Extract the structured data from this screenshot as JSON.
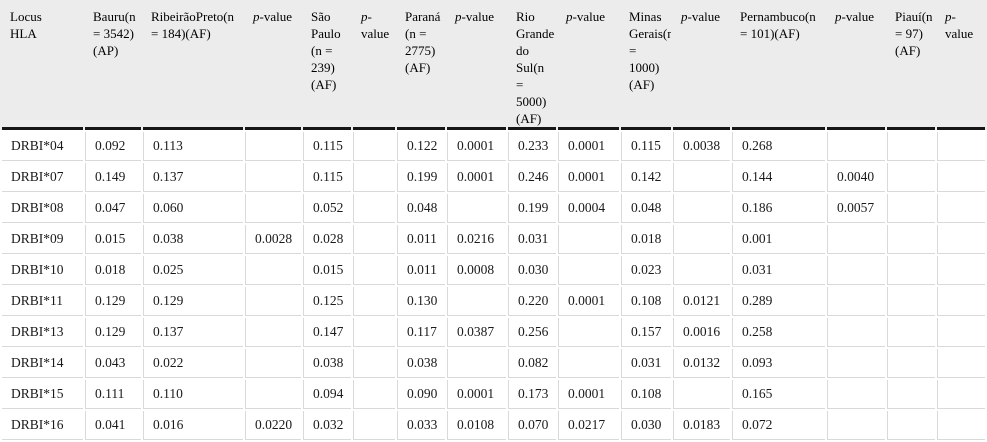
{
  "colors": {
    "header_background": "#ececec",
    "grid_line": "#d9d9d9",
    "header_rule": "#161616",
    "text": "#1a1a1a"
  },
  "table": {
    "columns": [
      {
        "id": "locus",
        "label": "Locus HLA",
        "type": "locus"
      },
      {
        "id": "bauru",
        "label": "Bauru(n = 3542) (AP)",
        "type": "population"
      },
      {
        "id": "ribeirao-preto",
        "label": "RibeirãoPreto(n = 184)(AF)",
        "type": "population"
      },
      {
        "id": "p-ribeirao-preto",
        "label": "p-value",
        "type": "pvalue"
      },
      {
        "id": "sao-paulo",
        "label": "São Paulo (n = 239) (AF)",
        "type": "population"
      },
      {
        "id": "p-sao-paulo",
        "label": "p-value",
        "type": "pvalue"
      },
      {
        "id": "parana",
        "label": "Paraná (n = 2775) (AF)",
        "type": "population"
      },
      {
        "id": "p-parana",
        "label": "p-value",
        "type": "pvalue"
      },
      {
        "id": "rio-grande-do-sul",
        "label": "Rio Grande do Sul(n = 5000) (AF)",
        "type": "population"
      },
      {
        "id": "p-rio-grande-do-sul",
        "label": "p-value",
        "type": "pvalue"
      },
      {
        "id": "minas-gerais",
        "label": "Minas Gerais(n = 1000) (AF)",
        "type": "population"
      },
      {
        "id": "p-minas-gerais",
        "label": "p-value",
        "type": "pvalue"
      },
      {
        "id": "pernambuco",
        "label": "Pernambuco(n = 101)(AF)",
        "type": "population"
      },
      {
        "id": "p-pernambuco",
        "label": "p-value",
        "type": "pvalue"
      },
      {
        "id": "piaui",
        "label": "Piauí(n = 97) (AF)",
        "type": "population"
      },
      {
        "id": "p-piaui",
        "label": "p-value",
        "type": "pvalue"
      }
    ],
    "rows": [
      [
        "DRBI*04",
        "0.092",
        "0.113",
        "",
        "0.115",
        "",
        "0.122",
        "0.0001",
        "0.233",
        "0.0001",
        "0.115",
        "0.0038",
        "0.268",
        "",
        "",
        ""
      ],
      [
        "DRBI*07",
        "0.149",
        "0.137",
        "",
        "0.115",
        "",
        "0.199",
        "0.0001",
        "0.246",
        "0.0001",
        "0.142",
        "",
        "0.144",
        "0.0040",
        "",
        ""
      ],
      [
        "DRBI*08",
        "0.047",
        "0.060",
        "",
        "0.052",
        "",
        "0.048",
        "",
        "0.199",
        "0.0004",
        "0.048",
        "",
        "0.186",
        "0.0057",
        "",
        ""
      ],
      [
        "DRBI*09",
        "0.015",
        "0.038",
        "0.0028",
        "0.028",
        "",
        "0.011",
        "0.0216",
        "0.031",
        "",
        "0.018",
        "",
        "0.001",
        "",
        "",
        ""
      ],
      [
        "DRBI*10",
        "0.018",
        "0.025",
        "",
        "0.015",
        "",
        "0.011",
        "0.0008",
        "0.030",
        "",
        "0.023",
        "",
        "0.031",
        "",
        "",
        ""
      ],
      [
        "DRBI*11",
        "0.129",
        "0.129",
        "",
        "0.125",
        "",
        "0.130",
        "",
        "0.220",
        "0.0001",
        "0.108",
        "0.0121",
        "0.289",
        "",
        "",
        ""
      ],
      [
        "DRBI*13",
        "0.129",
        "0.137",
        "",
        "0.147",
        "",
        "0.117",
        "0.0387",
        "0.256",
        "",
        "0.157",
        "0.0016",
        "0.258",
        "",
        "",
        ""
      ],
      [
        "DRBI*14",
        "0.043",
        "0.022",
        "",
        "0.038",
        "",
        "0.038",
        "",
        "0.082",
        "",
        "0.031",
        "0.0132",
        "0.093",
        "",
        "",
        ""
      ],
      [
        "DRBI*15",
        "0.111",
        "0.110",
        "",
        "0.094",
        "",
        "0.090",
        "0.0001",
        "0.173",
        "0.0001",
        "0.108",
        "",
        "0.165",
        "",
        "",
        ""
      ],
      [
        "DRBI*16",
        "0.041",
        "0.016",
        "0.0220",
        "0.032",
        "",
        "0.033",
        "0.0108",
        "0.070",
        "0.0217",
        "0.030",
        "0.0183",
        "0.072",
        "",
        "",
        ""
      ]
    ]
  }
}
